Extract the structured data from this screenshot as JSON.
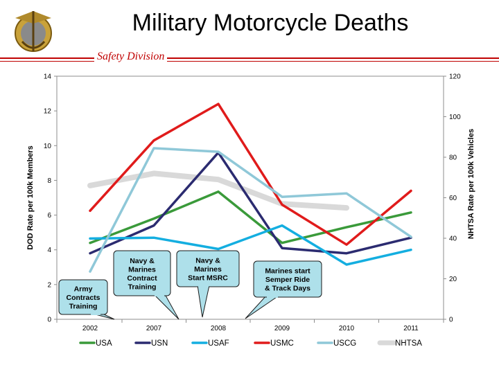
{
  "slide": {
    "title": "Military Motorcycle Deaths",
    "subtitle": "Safety Division"
  },
  "chart_data": {
    "type": "line",
    "xlabel": "",
    "ylabel": "DOD Rate per 100k Members",
    "y2label": "NHTSA Rate per 100k Vehicles",
    "ylim": [
      0,
      14
    ],
    "y2lim": [
      0,
      120
    ],
    "yticks": [
      "0",
      "2",
      "4",
      "6",
      "8",
      "10",
      "12",
      "14"
    ],
    "y2ticks": [
      "0",
      "20",
      "40",
      "60",
      "80",
      "100",
      "120"
    ],
    "x_labels": [
      "2002",
      "2007",
      "2008",
      "2009",
      "2010",
      "2011"
    ],
    "grid": false,
    "legend_position": "bottom",
    "series": [
      {
        "name": "USA",
        "color": "#3a9a3a",
        "axis": "left",
        "values": [
          4.4,
          5.8,
          7.35,
          4.4,
          5.3,
          6.15
        ]
      },
      {
        "name": "USN",
        "color": "#2b2b70",
        "axis": "left",
        "values": [
          3.8,
          5.4,
          9.6,
          4.1,
          3.8,
          4.7
        ]
      },
      {
        "name": "USAF",
        "color": "#14aee0",
        "axis": "left",
        "values": [
          4.65,
          4.7,
          4.05,
          5.4,
          3.15,
          4.0
        ]
      },
      {
        "name": "USMC",
        "color": "#e01b1b",
        "axis": "left",
        "values": [
          6.25,
          10.3,
          12.4,
          6.6,
          4.3,
          7.4
        ]
      },
      {
        "name": "USCG",
        "color": "#8fc8d8",
        "axis": "left",
        "values": [
          2.75,
          9.85,
          9.65,
          7.05,
          7.25,
          4.75
        ]
      },
      {
        "name": "NHTSA",
        "color": "#d9d9d9",
        "axis": "right",
        "values": [
          66,
          72,
          69,
          57,
          55,
          null
        ]
      }
    ],
    "annotations": [
      {
        "text": [
          "Army",
          "Contracts",
          "Training"
        ]
      },
      {
        "text": [
          "Navy &",
          "Marines",
          "Contract",
          "Training"
        ]
      },
      {
        "text": [
          "Navy &",
          "Marines",
          "Start MSRC"
        ]
      },
      {
        "text": [
          "Marines start",
          "Semper Ride",
          "& Track Days"
        ]
      }
    ]
  }
}
